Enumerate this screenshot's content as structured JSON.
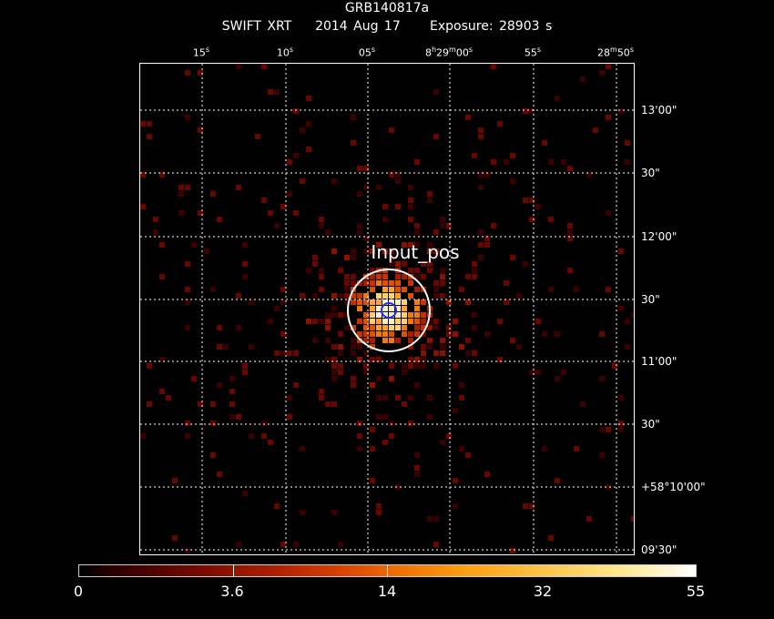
{
  "header": {
    "title": "GRB140817a",
    "instrument": "SWIFT XRT",
    "date": "2014 Aug 17",
    "exposure_label": "Exposure: 28903 s"
  },
  "axes": {
    "x_ticks": [
      "15s",
      "10s",
      "05s",
      "8h29m00s",
      "55s",
      "28m50s"
    ],
    "y_ticks": [
      "13'00\"",
      "30\"",
      "12'00\"",
      "30\"",
      "11'00\"",
      "30\"",
      "+58°10'00\"",
      "09'30\""
    ]
  },
  "source": {
    "label": "Input_pos",
    "error_circle_color": "#ffffff",
    "position_marker_color": "#1f2cff"
  },
  "colorbar": {
    "ticks": [
      "0",
      "3.6",
      "14",
      "32",
      "55"
    ],
    "low_color": "#000000",
    "high_color": "#ffffff"
  }
}
